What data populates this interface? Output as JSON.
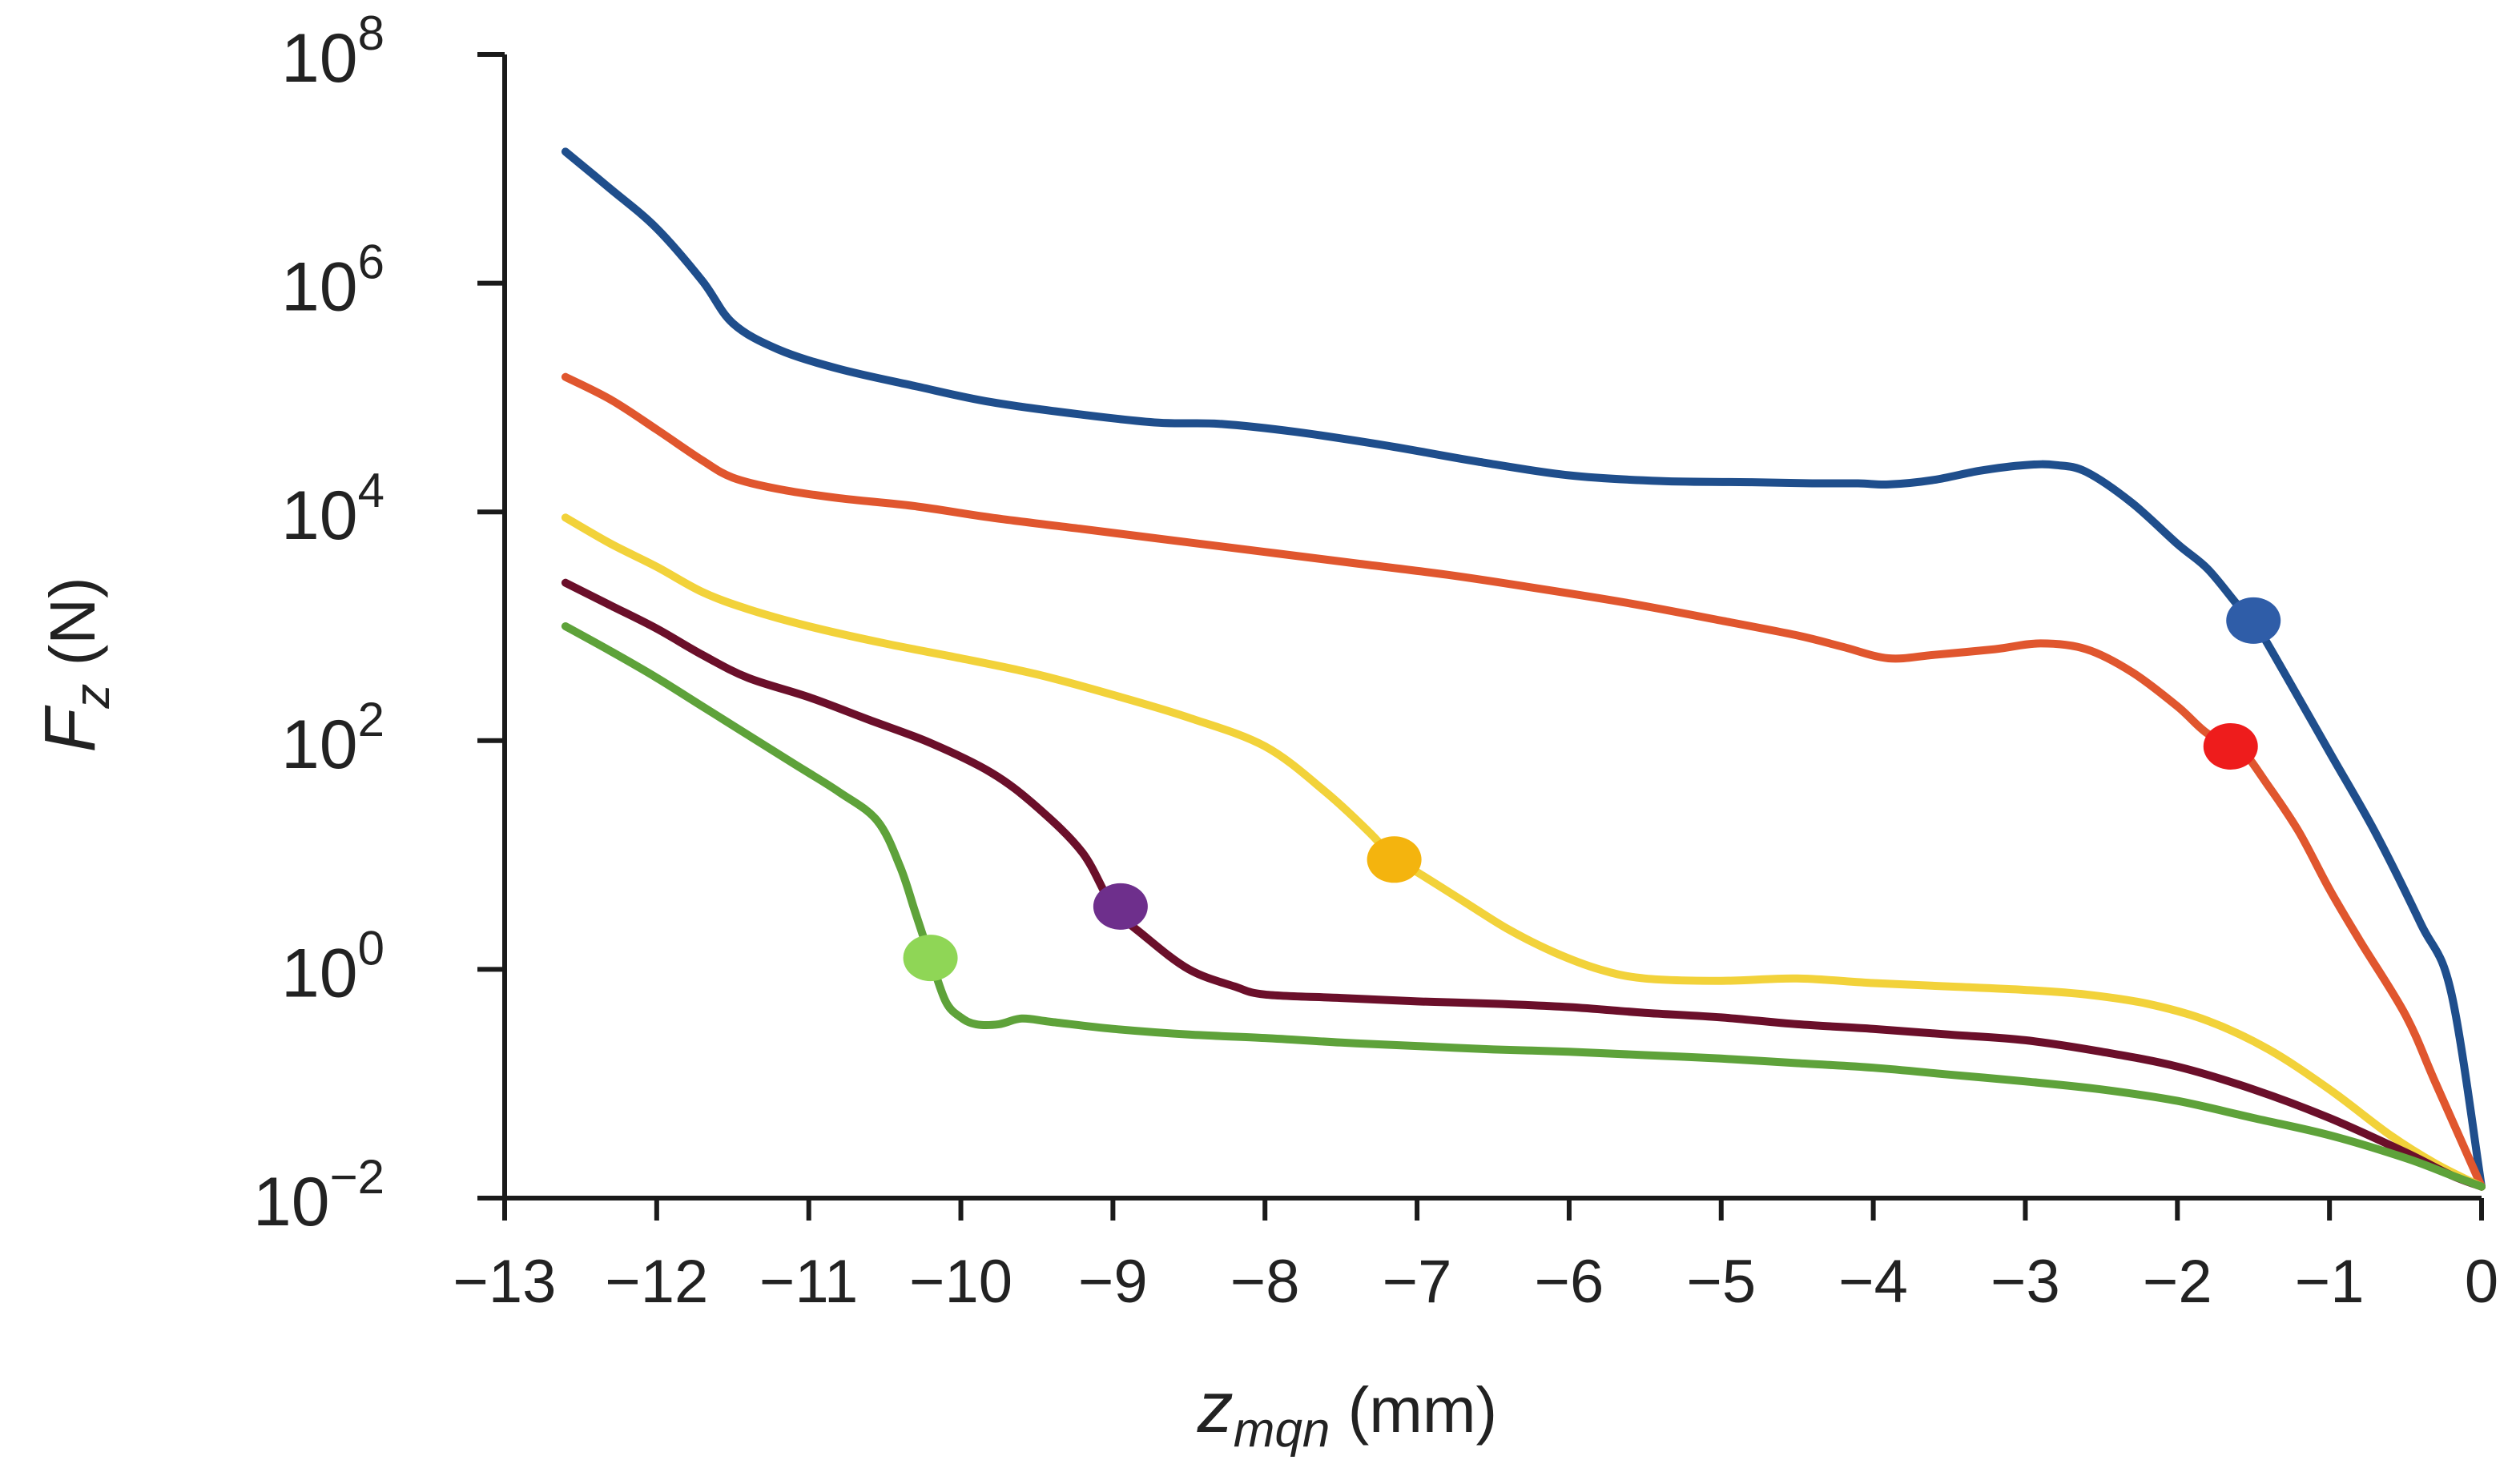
{
  "chart_data": {
    "type": "line",
    "title": "",
    "xlabel": {
      "main": "z",
      "sub": "mqn",
      "unit": " (mm)"
    },
    "ylabel": {
      "main": "F",
      "sub": "z",
      "unit": " (N)"
    },
    "xlim": [
      -13,
      0
    ],
    "ylim_log10": [
      -2,
      8
    ],
    "y_scale": "log",
    "x_ticks": [
      -13,
      -12,
      -11,
      -10,
      -9,
      -8,
      -7,
      -6,
      -5,
      -4,
      -3,
      -2,
      -1,
      0
    ],
    "x_tick_labels": [
      "−13",
      "−12",
      "−11",
      "−10",
      "−9",
      "−8",
      "−7",
      "−6",
      "−5",
      "−4",
      "−3",
      "−2",
      "−1",
      "0"
    ],
    "y_ticks_log10": [
      -2,
      0,
      2,
      4,
      6,
      8
    ],
    "y_tick_labels": [
      {
        "base": "10",
        "exp": "−2"
      },
      {
        "base": "10",
        "exp": "0"
      },
      {
        "base": "10",
        "exp": "2"
      },
      {
        "base": "10",
        "exp": "4"
      },
      {
        "base": "10",
        "exp": "6"
      },
      {
        "base": "10",
        "exp": "8"
      }
    ],
    "grid": false,
    "legend": "none",
    "series": [
      {
        "name": "blue",
        "color": "#1f4e8c",
        "marker_color": "#2f5da8",
        "x": [
          -12.6,
          -12.3,
          -12.0,
          -11.7,
          -11.5,
          -11.2,
          -10.8,
          -10.3,
          -9.8,
          -9.2,
          -8.7,
          -8.3,
          -7.8,
          -7.2,
          -6.6,
          -6.0,
          -5.4,
          -4.8,
          -4.4,
          -4.1,
          -3.9,
          -3.6,
          -3.3,
          -3.0,
          -2.8,
          -2.6,
          -2.3,
          -2.0,
          -1.8,
          -1.6,
          -1.5,
          -1.3,
          -1.0,
          -0.7,
          -0.4,
          -0.2,
          0.0
        ],
        "log10_y": [
          7.15,
          6.82,
          6.48,
          6.02,
          5.65,
          5.42,
          5.25,
          5.1,
          4.96,
          4.85,
          4.78,
          4.77,
          4.7,
          4.58,
          4.44,
          4.32,
          4.27,
          4.26,
          4.25,
          4.25,
          4.24,
          4.28,
          4.36,
          4.41,
          4.41,
          4.35,
          4.08,
          3.72,
          3.5,
          3.18,
          3.05,
          2.6,
          1.9,
          1.2,
          0.4,
          -0.2,
          -1.9
        ],
        "marker": {
          "x": -1.5,
          "log10_y": 3.05
        }
      },
      {
        "name": "orange",
        "color": "#e0562e",
        "marker_color": "#ee1c1c",
        "x": [
          -12.6,
          -12.3,
          -12.0,
          -11.7,
          -11.5,
          -11.2,
          -10.8,
          -10.3,
          -9.8,
          -9.2,
          -8.6,
          -8.0,
          -7.4,
          -6.8,
          -6.2,
          -5.6,
          -5.0,
          -4.5,
          -4.2,
          -3.9,
          -3.6,
          -3.2,
          -2.9,
          -2.6,
          -2.3,
          -2.0,
          -1.8,
          -1.6,
          -1.4,
          -1.2,
          -1.0,
          -0.8,
          -0.5,
          -0.3,
          0.0
        ],
        "log10_y": [
          5.18,
          4.98,
          4.72,
          4.45,
          4.3,
          4.2,
          4.12,
          4.05,
          3.95,
          3.85,
          3.75,
          3.65,
          3.55,
          3.45,
          3.33,
          3.2,
          3.05,
          2.92,
          2.82,
          2.72,
          2.75,
          2.8,
          2.85,
          2.8,
          2.6,
          2.3,
          2.06,
          1.95,
          1.6,
          1.2,
          0.7,
          0.25,
          -0.4,
          -1.0,
          -1.9
        ],
        "marker": {
          "x": -1.65,
          "log10_y": 1.95
        }
      },
      {
        "name": "yellow",
        "color": "#f2d23a",
        "marker_color": "#f4b40e",
        "x": [
          -12.6,
          -12.3,
          -12.0,
          -11.7,
          -11.4,
          -11.0,
          -10.5,
          -10.0,
          -9.5,
          -9.0,
          -8.5,
          -8.0,
          -7.6,
          -7.3,
          -7.15,
          -7.0,
          -6.7,
          -6.4,
          -6.1,
          -5.8,
          -5.5,
          -5.0,
          -4.5,
          -4.0,
          -3.5,
          -3.0,
          -2.6,
          -2.2,
          -1.8,
          -1.4,
          -1.0,
          -0.6,
          -0.3,
          0.0
        ],
        "log10_y": [
          3.95,
          3.72,
          3.52,
          3.3,
          3.15,
          3.0,
          2.85,
          2.72,
          2.58,
          2.4,
          2.2,
          1.95,
          1.55,
          1.18,
          0.96,
          0.85,
          0.6,
          0.35,
          0.15,
          0.0,
          -0.08,
          -0.1,
          -0.08,
          -0.12,
          -0.15,
          -0.18,
          -0.22,
          -0.3,
          -0.45,
          -0.7,
          -1.05,
          -1.45,
          -1.7,
          -1.9
        ],
        "marker": {
          "x": -7.15,
          "log10_y": 0.96
        }
      },
      {
        "name": "maroon",
        "color": "#6b0f2a",
        "marker_color": "#6e2f8c",
        "x": [
          -12.6,
          -12.3,
          -12.0,
          -11.7,
          -11.4,
          -11.0,
          -10.6,
          -10.2,
          -9.8,
          -9.5,
          -9.2,
          -9.0,
          -8.8,
          -8.5,
          -8.2,
          -8.0,
          -7.5,
          -7.0,
          -6.5,
          -6.0,
          -5.5,
          -5.0,
          -4.5,
          -4.0,
          -3.5,
          -3.0,
          -2.5,
          -2.0,
          -1.5,
          -1.0,
          -0.5,
          -0.2,
          0.0
        ],
        "log10_y": [
          3.38,
          3.18,
          2.98,
          2.75,
          2.55,
          2.38,
          2.18,
          1.98,
          1.72,
          1.42,
          1.02,
          0.55,
          0.3,
          0.0,
          -0.15,
          -0.22,
          -0.25,
          -0.28,
          -0.3,
          -0.33,
          -0.38,
          -0.42,
          -0.48,
          -0.52,
          -0.57,
          -0.62,
          -0.72,
          -0.85,
          -1.05,
          -1.3,
          -1.6,
          -1.8,
          -1.9
        ],
        "marker": {
          "x": -8.95,
          "log10_y": 0.55
        }
      },
      {
        "name": "green",
        "color": "#5ea23a",
        "marker_color": "#8fd656",
        "x": [
          -12.6,
          -12.3,
          -12.0,
          -11.7,
          -11.4,
          -11.1,
          -10.8,
          -10.55,
          -10.4,
          -10.3,
          -10.2,
          -10.1,
          -10.0,
          -9.9,
          -9.75,
          -9.6,
          -9.4,
          -9.0,
          -8.5,
          -8.0,
          -7.5,
          -7.0,
          -6.5,
          -6.0,
          -5.5,
          -5.0,
          -4.5,
          -4.0,
          -3.5,
          -3.0,
          -2.5,
          -2.0,
          -1.5,
          -1.0,
          -0.5,
          -0.2,
          0.0
        ],
        "log10_y": [
          3.0,
          2.78,
          2.55,
          2.3,
          2.05,
          1.8,
          1.55,
          1.3,
          0.9,
          0.5,
          0.1,
          -0.28,
          -0.42,
          -0.48,
          -0.48,
          -0.43,
          -0.46,
          -0.52,
          -0.57,
          -0.6,
          -0.64,
          -0.67,
          -0.7,
          -0.72,
          -0.75,
          -0.78,
          -0.82,
          -0.86,
          -0.92,
          -0.98,
          -1.05,
          -1.15,
          -1.3,
          -1.45,
          -1.65,
          -1.8,
          -1.9
        ],
        "marker": {
          "x": -10.2,
          "log10_y": 0.1
        }
      }
    ]
  }
}
